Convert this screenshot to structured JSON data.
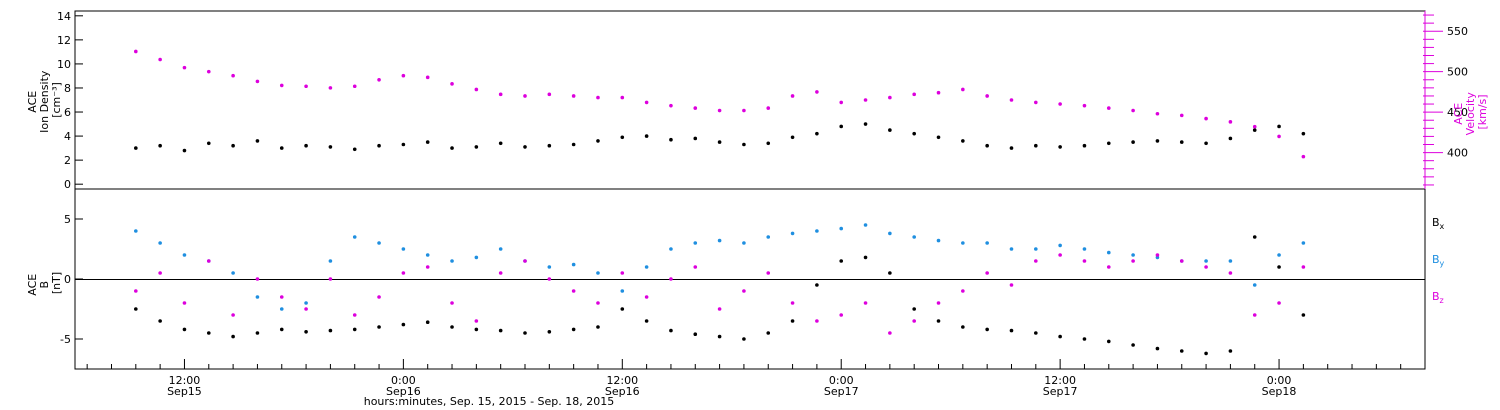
{
  "colors": {
    "black": "#000000",
    "magenta": "#dd00dd",
    "blue": "#1f8fe0"
  },
  "chart_data": [
    {
      "panel": "top",
      "type": "scatter",
      "ylabel_left": [
        "ACE",
        "Ion Density",
        "[cm⁻³]"
      ],
      "ylabel_right": [
        "ACE",
        "Velocity",
        "[km/s]"
      ],
      "ylim_left": [
        -0.4,
        14.4
      ],
      "ylim_right": [
        355,
        575
      ],
      "yticks_left": [
        "0",
        "2",
        "4",
        "6",
        "8",
        "10",
        "12",
        "14"
      ],
      "yticks_right": [
        "400",
        "450",
        "500",
        "550"
      ],
      "series": [
        {
          "axis": "left",
          "color": "#000000",
          "x_hours": [
            8,
            10,
            12,
            14,
            16,
            18,
            20,
            22,
            24,
            26,
            28,
            30,
            32,
            34,
            36,
            38,
            40,
            42,
            44,
            46,
            48,
            50,
            52,
            54,
            56,
            58,
            60,
            62,
            64,
            66,
            68,
            70,
            72,
            74,
            76,
            78,
            80,
            82,
            84,
            86,
            88,
            90,
            92,
            94,
            96,
            98,
            100,
            102,
            104
          ],
          "y": [
            3.0,
            3.2,
            2.8,
            3.4,
            3.2,
            3.6,
            3.0,
            3.2,
            3.1,
            2.9,
            3.2,
            3.3,
            3.5,
            3.0,
            3.1,
            3.4,
            3.1,
            3.2,
            3.3,
            3.6,
            3.9,
            4.0,
            3.7,
            3.8,
            3.5,
            3.3,
            3.4,
            3.9,
            4.2,
            4.8,
            5.0,
            4.5,
            4.2,
            3.9,
            3.6,
            3.2,
            3.0,
            3.2,
            3.1,
            3.2,
            3.4,
            3.5,
            3.6,
            3.5,
            3.4,
            3.8,
            4.5,
            4.8,
            4.2
          ]
        },
        {
          "axis": "right",
          "color": "#dd00dd",
          "x_hours": [
            8,
            10,
            12,
            14,
            16,
            18,
            20,
            22,
            24,
            26,
            28,
            30,
            32,
            34,
            36,
            38,
            40,
            42,
            44,
            46,
            48,
            50,
            52,
            54,
            56,
            58,
            60,
            62,
            64,
            66,
            68,
            70,
            72,
            74,
            76,
            78,
            80,
            82,
            84,
            86,
            88,
            90,
            92,
            94,
            96,
            98,
            100,
            102,
            104
          ],
          "y": [
            525,
            515,
            505,
            500,
            495,
            488,
            483,
            482,
            480,
            482,
            490,
            495,
            493,
            485,
            478,
            472,
            470,
            472,
            470,
            468,
            468,
            462,
            458,
            455,
            452,
            452,
            455,
            470,
            475,
            462,
            465,
            468,
            472,
            474,
            478,
            470,
            465,
            462,
            460,
            458,
            455,
            452,
            448,
            446,
            442,
            438,
            432,
            420,
            395
          ]
        }
      ]
    },
    {
      "panel": "bottom",
      "type": "scatter",
      "ylabel_left": [
        "ACE",
        "B",
        "[nT]"
      ],
      "ylim": [
        -7.5,
        7.5
      ],
      "yticks": [
        "-5",
        "0",
        "5"
      ],
      "legend_position": "right",
      "series": [
        {
          "name": "Bx",
          "name_base": "B",
          "name_sub": "x",
          "color": "#000000",
          "x_hours": [
            8,
            10,
            12,
            14,
            16,
            18,
            20,
            22,
            24,
            26,
            28,
            30,
            32,
            34,
            36,
            38,
            40,
            42,
            44,
            46,
            48,
            50,
            52,
            54,
            56,
            58,
            60,
            62,
            64,
            66,
            68,
            70,
            72,
            74,
            76,
            78,
            80,
            82,
            84,
            86,
            88,
            90,
            92,
            94,
            96,
            98,
            100,
            102,
            104
          ],
          "y": [
            -2.5,
            -3.5,
            -4.2,
            -4.5,
            -4.8,
            -4.5,
            -4.2,
            -4.4,
            -4.3,
            -4.2,
            -4.0,
            -3.8,
            -3.6,
            -4.0,
            -4.2,
            -4.3,
            -4.5,
            -4.4,
            -4.2,
            -4.0,
            -2.5,
            -3.5,
            -4.3,
            -4.6,
            -4.8,
            -5.0,
            -4.5,
            -3.5,
            -0.5,
            1.5,
            1.8,
            0.5,
            -2.5,
            -3.5,
            -4.0,
            -4.2,
            -4.3,
            -4.5,
            -4.8,
            -5.0,
            -5.2,
            -5.5,
            -5.8,
            -6.0,
            -6.2,
            -6.0,
            3.5,
            1.0,
            -3.0
          ]
        },
        {
          "name": "By",
          "name_base": "B",
          "name_sub": "y",
          "color": "#1f8fe0",
          "x_hours": [
            8,
            10,
            12,
            14,
            16,
            18,
            20,
            22,
            24,
            26,
            28,
            30,
            32,
            34,
            36,
            38,
            40,
            42,
            44,
            46,
            48,
            50,
            52,
            54,
            56,
            58,
            60,
            62,
            64,
            66,
            68,
            70,
            72,
            74,
            76,
            78,
            80,
            82,
            84,
            86,
            88,
            90,
            92,
            94,
            96,
            98,
            100,
            102,
            104
          ],
          "y": [
            4.0,
            3.0,
            2.0,
            1.5,
            0.5,
            -1.5,
            -2.5,
            -2.0,
            1.5,
            3.5,
            3.0,
            2.5,
            2.0,
            1.5,
            1.8,
            2.5,
            1.5,
            1.0,
            1.2,
            0.5,
            -1.0,
            1.0,
            2.5,
            3.0,
            3.2,
            3.0,
            3.5,
            3.8,
            4.0,
            4.2,
            4.5,
            3.8,
            3.5,
            3.2,
            3.0,
            3.0,
            2.5,
            2.5,
            2.8,
            2.5,
            2.2,
            2.0,
            1.8,
            1.5,
            1.5,
            1.5,
            -0.5,
            2.0,
            3.0
          ]
        },
        {
          "name": "Bz",
          "name_base": "B",
          "name_sub": "z",
          "color": "#dd00dd",
          "x_hours": [
            8,
            10,
            12,
            14,
            16,
            18,
            20,
            22,
            24,
            26,
            28,
            30,
            32,
            34,
            36,
            38,
            40,
            42,
            44,
            46,
            48,
            50,
            52,
            54,
            56,
            58,
            60,
            62,
            64,
            66,
            68,
            70,
            72,
            74,
            76,
            78,
            80,
            82,
            84,
            86,
            88,
            90,
            92,
            94,
            96,
            98,
            100,
            102,
            104
          ],
          "y": [
            -1.0,
            0.5,
            -2.0,
            1.5,
            -3.0,
            0.0,
            -1.5,
            -2.5,
            0.0,
            -3.0,
            -1.5,
            0.5,
            1.0,
            -2.0,
            -3.5,
            0.5,
            1.5,
            0.0,
            -1.0,
            -2.0,
            0.5,
            -1.5,
            0.0,
            1.0,
            -2.5,
            -1.0,
            0.5,
            -2.0,
            -3.5,
            -3.0,
            -2.0,
            -4.5,
            -3.5,
            -2.0,
            -1.0,
            0.5,
            -0.5,
            1.5,
            2.0,
            1.5,
            1.0,
            1.5,
            2.0,
            1.5,
            1.0,
            0.5,
            -3.0,
            -2.0,
            1.0
          ]
        }
      ]
    }
  ],
  "x_axis": {
    "xlim_hours": [
      3,
      114
    ],
    "ticks": [
      {
        "hours": 12,
        "time": "12:00",
        "date": "Sep15"
      },
      {
        "hours": 30,
        "time": "0:00",
        "date": "Sep16"
      },
      {
        "hours": 48,
        "time": "12:00",
        "date": "Sep16"
      },
      {
        "hours": 66,
        "time": "0:00",
        "date": "Sep17"
      },
      {
        "hours": 84,
        "time": "12:00",
        "date": "Sep17"
      },
      {
        "hours": 102,
        "time": "0:00",
        "date": "Sep18"
      }
    ],
    "label": "hours:minutes, Sep. 15, 2015 - Sep. 18, 2015"
  }
}
